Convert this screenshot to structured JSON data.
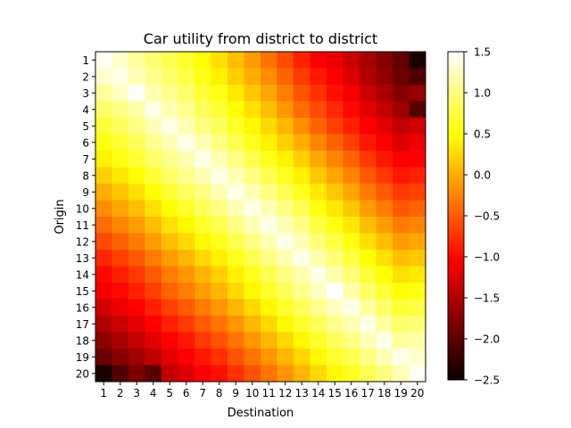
{
  "chart_data": {
    "type": "heatmap",
    "title": "Car utility from district to district",
    "xlabel": "Destination",
    "ylabel": "Origin",
    "x_categories": [
      "1",
      "2",
      "3",
      "4",
      "5",
      "6",
      "7",
      "8",
      "9",
      "10",
      "11",
      "12",
      "13",
      "14",
      "15",
      "16",
      "17",
      "18",
      "19",
      "20"
    ],
    "y_categories": [
      "1",
      "2",
      "3",
      "4",
      "5",
      "6",
      "7",
      "8",
      "9",
      "10",
      "11",
      "12",
      "13",
      "14",
      "15",
      "16",
      "17",
      "18",
      "19",
      "20"
    ],
    "colormap": "hot",
    "vmin": -2.5,
    "vmax": 1.5,
    "colorbar_ticks": [
      "1.5",
      "1.0",
      "0.5",
      "0.0",
      "−0.5",
      "−1.0",
      "−1.5",
      "−2.0",
      "−2.5"
    ],
    "colorbar_tick_values": [
      1.5,
      1.0,
      0.5,
      0.0,
      -0.5,
      -1.0,
      -1.5,
      -2.0,
      -2.5
    ],
    "values": [
      [
        1.45,
        1.3,
        1.1,
        0.95,
        0.8,
        0.65,
        0.5,
        0.3,
        0.1,
        -0.1,
        -0.35,
        -0.6,
        -0.85,
        -1.05,
        -1.2,
        -1.4,
        -1.6,
        -1.8,
        -2.0,
        -2.4
      ],
      [
        1.3,
        1.4,
        1.2,
        1.05,
        0.9,
        0.75,
        0.55,
        0.4,
        0.2,
        0.0,
        -0.2,
        -0.45,
        -0.7,
        -0.9,
        -1.1,
        -1.3,
        -1.55,
        -1.75,
        -1.95,
        -2.1
      ],
      [
        1.1,
        1.25,
        1.5,
        1.2,
        1.05,
        0.9,
        0.7,
        0.55,
        0.35,
        0.15,
        -0.05,
        -0.3,
        -0.55,
        -0.75,
        -0.95,
        -1.15,
        -1.4,
        -1.6,
        -1.8,
        -1.7
      ],
      [
        0.9,
        1.0,
        1.15,
        1.4,
        1.2,
        1.05,
        0.85,
        0.7,
        0.5,
        0.3,
        0.1,
        -0.15,
        -0.4,
        -0.6,
        -0.8,
        -1.0,
        -1.25,
        -1.45,
        -1.65,
        -2.05
      ],
      [
        0.7,
        0.85,
        1.0,
        1.2,
        1.4,
        1.2,
        1.0,
        0.85,
        0.65,
        0.45,
        0.25,
        0.05,
        -0.2,
        -0.45,
        -0.65,
        -0.85,
        -1.05,
        -1.25,
        -1.45,
        -1.35
      ],
      [
        0.55,
        0.7,
        0.85,
        1.05,
        1.2,
        1.4,
        1.2,
        1.0,
        0.8,
        0.6,
        0.4,
        0.2,
        0.0,
        -0.25,
        -0.45,
        -0.65,
        -0.9,
        -1.1,
        -1.3,
        -1.2
      ],
      [
        0.4,
        0.55,
        0.7,
        0.9,
        1.05,
        1.2,
        1.4,
        1.2,
        1.0,
        0.8,
        0.6,
        0.4,
        0.2,
        -0.05,
        -0.25,
        -0.45,
        -0.7,
        -0.9,
        -1.1,
        -1.05
      ],
      [
        0.2,
        0.35,
        0.5,
        0.7,
        0.9,
        1.05,
        1.2,
        1.4,
        1.2,
        1.0,
        0.8,
        0.6,
        0.4,
        0.15,
        -0.05,
        -0.25,
        -0.5,
        -0.7,
        -0.9,
        -0.85
      ],
      [
        0.0,
        0.15,
        0.3,
        0.5,
        0.7,
        0.85,
        1.0,
        1.2,
        1.4,
        1.2,
        1.0,
        0.8,
        0.6,
        0.35,
        0.15,
        -0.05,
        -0.3,
        -0.5,
        -0.7,
        -0.65
      ],
      [
        -0.2,
        -0.05,
        0.1,
        0.3,
        0.5,
        0.65,
        0.85,
        1.0,
        1.2,
        1.4,
        1.2,
        1.0,
        0.8,
        0.55,
        0.35,
        0.15,
        -0.1,
        -0.3,
        -0.5,
        -0.45
      ],
      [
        -0.4,
        -0.25,
        -0.1,
        0.1,
        0.3,
        0.45,
        0.65,
        0.8,
        1.0,
        1.2,
        1.4,
        1.2,
        1.0,
        0.75,
        0.55,
        0.35,
        0.1,
        -0.1,
        -0.3,
        -0.25
      ],
      [
        -0.6,
        -0.45,
        -0.3,
        -0.1,
        0.1,
        0.25,
        0.45,
        0.6,
        0.8,
        1.0,
        1.2,
        1.4,
        1.2,
        0.95,
        0.75,
        0.55,
        0.3,
        0.1,
        -0.1,
        -0.05
      ],
      [
        -0.8,
        -0.65,
        -0.5,
        -0.3,
        -0.1,
        0.05,
        0.25,
        0.4,
        0.6,
        0.8,
        1.0,
        1.2,
        1.4,
        1.15,
        0.95,
        0.75,
        0.5,
        0.3,
        0.1,
        0.15
      ],
      [
        -1.0,
        -0.85,
        -0.7,
        -0.5,
        -0.3,
        -0.15,
        0.05,
        0.2,
        0.4,
        0.6,
        0.8,
        1.0,
        1.2,
        1.4,
        1.15,
        0.95,
        0.7,
        0.5,
        0.3,
        0.35
      ],
      [
        -1.15,
        -1.0,
        -0.85,
        -0.65,
        -0.45,
        -0.3,
        -0.1,
        0.05,
        0.25,
        0.45,
        0.65,
        0.85,
        1.05,
        1.25,
        1.5,
        1.15,
        0.9,
        0.7,
        0.5,
        0.55
      ],
      [
        -1.35,
        -1.2,
        -1.05,
        -0.85,
        -0.65,
        -0.5,
        -0.3,
        -0.15,
        0.05,
        0.25,
        0.45,
        0.65,
        0.85,
        1.05,
        1.25,
        1.4,
        1.1,
        0.9,
        0.7,
        0.75
      ],
      [
        -1.55,
        -1.4,
        -1.25,
        -1.05,
        -0.85,
        -0.7,
        -0.5,
        -0.35,
        -0.15,
        0.05,
        0.25,
        0.45,
        0.65,
        0.85,
        1.05,
        1.2,
        1.4,
        1.1,
        0.9,
        0.95
      ],
      [
        -1.75,
        -1.6,
        -1.45,
        -1.25,
        -1.05,
        -0.9,
        -0.7,
        -0.55,
        -0.35,
        -0.15,
        0.05,
        0.25,
        0.45,
        0.65,
        0.85,
        1.0,
        1.2,
        1.4,
        1.1,
        1.15
      ],
      [
        -1.95,
        -1.8,
        -1.65,
        -1.45,
        -1.25,
        -1.1,
        -0.9,
        -0.75,
        -0.55,
        -0.35,
        -0.15,
        0.05,
        0.25,
        0.45,
        0.65,
        0.8,
        1.0,
        1.2,
        1.4,
        1.3
      ],
      [
        -2.4,
        -2.1,
        -1.85,
        -2.05,
        -1.45,
        -1.3,
        -1.1,
        -0.95,
        -0.75,
        -0.55,
        -0.35,
        -0.15,
        0.05,
        0.25,
        0.45,
        0.6,
        0.8,
        1.0,
        1.2,
        1.45
      ]
    ]
  }
}
